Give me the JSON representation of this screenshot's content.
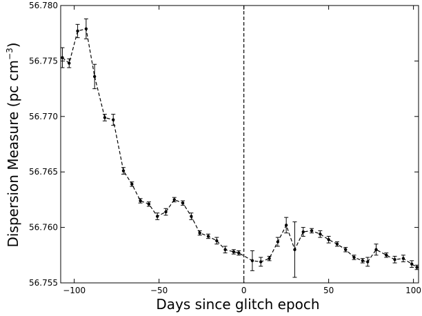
{
  "chart_data": {
    "type": "scatter",
    "xlabel": "Days since glitch epoch",
    "ylabel": "Dispersion Measure (pc cm",
    "ylabel_sup": "−3",
    "ylabel_close": ")",
    "xlim": [
      -108,
      103
    ],
    "ylim": [
      56.755,
      56.78
    ],
    "xticks": [
      -100,
      -50,
      0,
      50,
      100
    ],
    "xtick_labels": [
      "−100",
      "−50",
      "0",
      "50",
      "100"
    ],
    "yticks": [
      56.755,
      56.76,
      56.765,
      56.77,
      56.775,
      56.78
    ],
    "ytick_labels": [
      "56.755",
      "56.760",
      "56.765",
      "56.770",
      "56.775",
      "56.780"
    ],
    "vline_x": 0,
    "connect_points": true,
    "grid": false,
    "series": [
      {
        "points": [
          {
            "x": -107,
            "y": 56.7753,
            "err": 0.0009
          },
          {
            "x": -103,
            "y": 56.7748,
            "err": 0.0004
          },
          {
            "x": -98,
            "y": 56.7777,
            "err": 0.0006
          },
          {
            "x": -93,
            "y": 56.7779,
            "err": 0.0009
          },
          {
            "x": -88,
            "y": 56.7736,
            "err": 0.0011
          },
          {
            "x": -82,
            "y": 56.7699,
            "err": 0.0003
          },
          {
            "x": -77,
            "y": 56.7697,
            "err": 0.0005
          },
          {
            "x": -71,
            "y": 56.7651,
            "err": 0.0003
          },
          {
            "x": -66,
            "y": 56.7639,
            "err": 0.0002
          },
          {
            "x": -61,
            "y": 56.7624,
            "err": 0.0002
          },
          {
            "x": -56,
            "y": 56.7621,
            "err": 0.0002
          },
          {
            "x": -51,
            "y": 56.761,
            "err": 0.0003
          },
          {
            "x": -46,
            "y": 56.7614,
            "err": 0.0003
          },
          {
            "x": -41,
            "y": 56.7625,
            "err": 0.0002
          },
          {
            "x": -36,
            "y": 56.7622,
            "err": 0.0002
          },
          {
            "x": -31,
            "y": 56.761,
            "err": 0.0003
          },
          {
            "x": -26,
            "y": 56.7595,
            "err": 0.0002
          },
          {
            "x": -21,
            "y": 56.7592,
            "err": 0.0002
          },
          {
            "x": -16,
            "y": 56.7588,
            "err": 0.0003
          },
          {
            "x": -11,
            "y": 56.758,
            "err": 0.0003
          },
          {
            "x": -6,
            "y": 56.7578,
            "err": 0.0002
          },
          {
            "x": -3,
            "y": 56.7577,
            "err": 0.0002
          },
          {
            "x": 5,
            "y": 56.757,
            "err": 0.0009
          },
          {
            "x": 10,
            "y": 56.7569,
            "err": 0.0004
          },
          {
            "x": 15,
            "y": 56.7572,
            "err": 0.0002
          },
          {
            "x": 20,
            "y": 56.7587,
            "err": 0.0004
          },
          {
            "x": 25,
            "y": 56.7602,
            "err": 0.0007
          },
          {
            "x": 30,
            "y": 56.758,
            "err": 0.0025
          },
          {
            "x": 35,
            "y": 56.7596,
            "err": 0.0004
          },
          {
            "x": 40,
            "y": 56.7597,
            "err": 0.0002
          },
          {
            "x": 45,
            "y": 56.7594,
            "err": 0.0003
          },
          {
            "x": 50,
            "y": 56.7589,
            "err": 0.0003
          },
          {
            "x": 55,
            "y": 56.7585,
            "err": 0.0002
          },
          {
            "x": 60,
            "y": 56.758,
            "err": 0.0002
          },
          {
            "x": 65,
            "y": 56.7573,
            "err": 0.0002
          },
          {
            "x": 70,
            "y": 56.757,
            "err": 0.0002
          },
          {
            "x": 73,
            "y": 56.7569,
            "err": 0.0004
          },
          {
            "x": 78,
            "y": 56.758,
            "err": 0.0005
          },
          {
            "x": 84,
            "y": 56.7575,
            "err": 0.0002
          },
          {
            "x": 89,
            "y": 56.7571,
            "err": 0.0003
          },
          {
            "x": 94,
            "y": 56.7572,
            "err": 0.0003
          },
          {
            "x": 99,
            "y": 56.7567,
            "err": 0.0003
          },
          {
            "x": 102,
            "y": 56.7564,
            "err": 0.0002
          }
        ]
      }
    ]
  }
}
